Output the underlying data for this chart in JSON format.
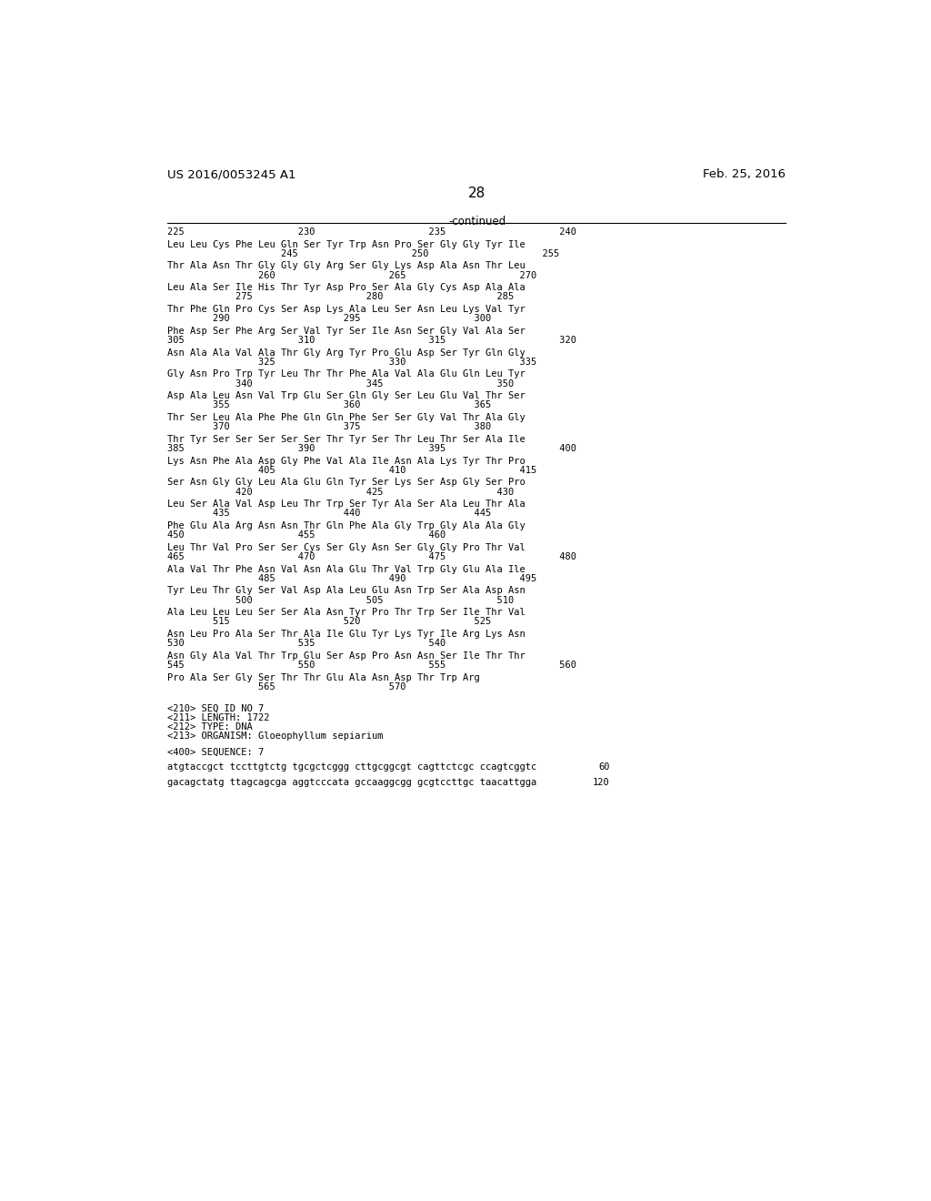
{
  "header_left": "US 2016/0053245 A1",
  "header_right": "Feb. 25, 2016",
  "page_number": "28",
  "continued_label": "-continued",
  "background_color": "#ffffff",
  "text_color": "#000000",
  "font_size": 7.5,
  "mono_font": "DejaVu Sans Mono",
  "content_lines": [
    {
      "type": "ruler_numbers",
      "text": "225                    230                    235                    240"
    },
    {
      "type": "spacer"
    },
    {
      "type": "sequence",
      "text": "Leu Leu Cys Phe Leu Gln Ser Tyr Trp Asn Pro Ser Gly Gly Tyr Ile"
    },
    {
      "type": "numbers",
      "text": "                    245                    250                    255"
    },
    {
      "type": "spacer"
    },
    {
      "type": "sequence",
      "text": "Thr Ala Asn Thr Gly Gly Gly Arg Ser Gly Lys Asp Ala Asn Thr Leu"
    },
    {
      "type": "numbers",
      "text": "                260                    265                    270"
    },
    {
      "type": "spacer"
    },
    {
      "type": "sequence",
      "text": "Leu Ala Ser Ile His Thr Tyr Asp Pro Ser Ala Gly Cys Asp Ala Ala"
    },
    {
      "type": "numbers",
      "text": "            275                    280                    285"
    },
    {
      "type": "spacer"
    },
    {
      "type": "sequence",
      "text": "Thr Phe Gln Pro Cys Ser Asp Lys Ala Leu Ser Asn Leu Lys Val Tyr"
    },
    {
      "type": "numbers",
      "text": "        290                    295                    300"
    },
    {
      "type": "spacer"
    },
    {
      "type": "sequence",
      "text": "Phe Asp Ser Phe Arg Ser Val Tyr Ser Ile Asn Ser Gly Val Ala Ser"
    },
    {
      "type": "numbers",
      "text": "305                    310                    315                    320"
    },
    {
      "type": "spacer"
    },
    {
      "type": "sequence",
      "text": "Asn Ala Ala Val Ala Thr Gly Arg Tyr Pro Glu Asp Ser Tyr Gln Gly"
    },
    {
      "type": "numbers",
      "text": "                325                    330                    335"
    },
    {
      "type": "spacer"
    },
    {
      "type": "sequence",
      "text": "Gly Asn Pro Trp Tyr Leu Thr Thr Phe Ala Val Ala Glu Gln Leu Tyr"
    },
    {
      "type": "numbers",
      "text": "            340                    345                    350"
    },
    {
      "type": "spacer"
    },
    {
      "type": "sequence",
      "text": "Asp Ala Leu Asn Val Trp Glu Ser Gln Gly Ser Leu Glu Val Thr Ser"
    },
    {
      "type": "numbers",
      "text": "        355                    360                    365"
    },
    {
      "type": "spacer"
    },
    {
      "type": "sequence",
      "text": "Thr Ser Leu Ala Phe Phe Gln Gln Phe Ser Ser Gly Val Thr Ala Gly"
    },
    {
      "type": "numbers",
      "text": "        370                    375                    380"
    },
    {
      "type": "spacer"
    },
    {
      "type": "sequence",
      "text": "Thr Tyr Ser Ser Ser Ser Ser Thr Tyr Ser Thr Leu Thr Ser Ala Ile"
    },
    {
      "type": "numbers",
      "text": "385                    390                    395                    400"
    },
    {
      "type": "spacer"
    },
    {
      "type": "sequence",
      "text": "Lys Asn Phe Ala Asp Gly Phe Val Ala Ile Asn Ala Lys Tyr Thr Pro"
    },
    {
      "type": "numbers",
      "text": "                405                    410                    415"
    },
    {
      "type": "spacer"
    },
    {
      "type": "sequence",
      "text": "Ser Asn Gly Gly Leu Ala Glu Gln Tyr Ser Lys Ser Asp Gly Ser Pro"
    },
    {
      "type": "numbers",
      "text": "            420                    425                    430"
    },
    {
      "type": "spacer"
    },
    {
      "type": "sequence",
      "text": "Leu Ser Ala Val Asp Leu Thr Trp Ser Tyr Ala Ser Ala Leu Thr Ala"
    },
    {
      "type": "numbers",
      "text": "        435                    440                    445"
    },
    {
      "type": "spacer"
    },
    {
      "type": "sequence",
      "text": "Phe Glu Ala Arg Asn Asn Thr Gln Phe Ala Gly Trp Gly Ala Ala Gly"
    },
    {
      "type": "numbers",
      "text": "450                    455                    460"
    },
    {
      "type": "spacer"
    },
    {
      "type": "sequence",
      "text": "Leu Thr Val Pro Ser Ser Cys Ser Gly Asn Ser Gly Gly Pro Thr Val"
    },
    {
      "type": "numbers",
      "text": "465                    470                    475                    480"
    },
    {
      "type": "spacer"
    },
    {
      "type": "sequence",
      "text": "Ala Val Thr Phe Asn Val Asn Ala Glu Thr Val Trp Gly Glu Ala Ile"
    },
    {
      "type": "numbers",
      "text": "                485                    490                    495"
    },
    {
      "type": "spacer"
    },
    {
      "type": "sequence",
      "text": "Tyr Leu Thr Gly Ser Val Asp Ala Leu Glu Asn Trp Ser Ala Asp Asn"
    },
    {
      "type": "numbers",
      "text": "            500                    505                    510"
    },
    {
      "type": "spacer"
    },
    {
      "type": "sequence",
      "text": "Ala Leu Leu Leu Ser Ser Ala Asn Tyr Pro Thr Trp Ser Ile Thr Val"
    },
    {
      "type": "numbers",
      "text": "        515                    520                    525"
    },
    {
      "type": "spacer"
    },
    {
      "type": "sequence",
      "text": "Asn Leu Pro Ala Ser Thr Ala Ile Glu Tyr Lys Tyr Ile Arg Lys Asn"
    },
    {
      "type": "numbers",
      "text": "530                    535                    540"
    },
    {
      "type": "spacer"
    },
    {
      "type": "sequence",
      "text": "Asn Gly Ala Val Thr Trp Glu Ser Asp Pro Asn Asn Ser Ile Thr Thr"
    },
    {
      "type": "numbers",
      "text": "545                    550                    555                    560"
    },
    {
      "type": "spacer"
    },
    {
      "type": "sequence",
      "text": "Pro Ala Ser Gly Ser Thr Thr Glu Ala Asn Asp Thr Trp Arg"
    },
    {
      "type": "numbers",
      "text": "                565                    570"
    },
    {
      "type": "blank"
    },
    {
      "type": "blank"
    },
    {
      "type": "meta",
      "text": "<210> SEQ ID NO 7"
    },
    {
      "type": "meta",
      "text": "<211> LENGTH: 1722"
    },
    {
      "type": "meta",
      "text": "<212> TYPE: DNA"
    },
    {
      "type": "meta",
      "text": "<213> ORGANISM: Gloeophyllum sepiarium"
    },
    {
      "type": "blank"
    },
    {
      "type": "meta",
      "text": "<400> SEQUENCE: 7"
    },
    {
      "type": "blank"
    },
    {
      "type": "dna",
      "text": "atgtaccgct tccttgtctg tgcgctcggg cttgcggcgt cagttctcgc ccagtcggtc",
      "num": "60"
    },
    {
      "type": "blank"
    },
    {
      "type": "dna",
      "text": "gacagctatg ttagcagcga aggtcccata gccaaggcgg gcgtccttgc taacattgga",
      "num": "120"
    }
  ]
}
